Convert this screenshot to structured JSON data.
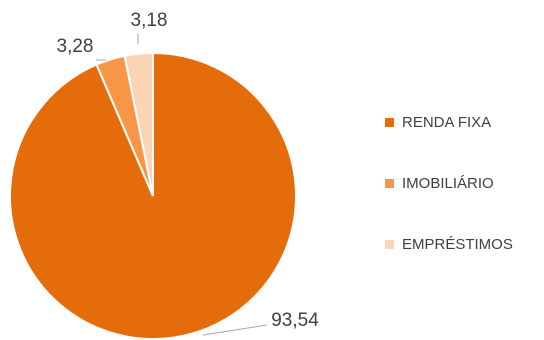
{
  "chart_data": {
    "type": "pie",
    "title": "",
    "start_angle_deg": 0,
    "direction": "clockwise",
    "slices": [
      {
        "label": "RENDA FIXA",
        "value": 93.54,
        "value_label": "93,54",
        "color": "#E46C0A"
      },
      {
        "label": "IMOBILIÁRIO",
        "value": 3.28,
        "value_label": "3,28",
        "color": "#F79646"
      },
      {
        "label": "EMPRÉSTIMOS",
        "value": 3.18,
        "value_label": "3,18",
        "color": "#FAD4B4"
      }
    ],
    "legend_position": "right"
  }
}
